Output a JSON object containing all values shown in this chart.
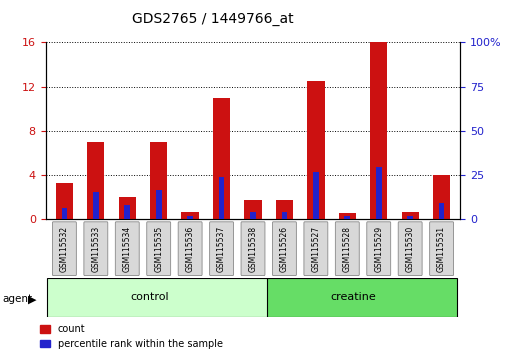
{
  "title": "GDS2765 / 1449766_at",
  "samples": [
    "GSM115532",
    "GSM115533",
    "GSM115534",
    "GSM115535",
    "GSM115536",
    "GSM115537",
    "GSM115538",
    "GSM115526",
    "GSM115527",
    "GSM115528",
    "GSM115529",
    "GSM115530",
    "GSM115531"
  ],
  "count_values": [
    3.3,
    7.0,
    2.0,
    7.0,
    0.7,
    11.0,
    1.8,
    1.8,
    12.5,
    0.6,
    16.0,
    0.7,
    4.0
  ],
  "percentile_values": [
    6.25,
    15.6,
    8.1,
    16.9,
    1.9,
    23.75,
    4.4,
    4.4,
    26.9,
    1.9,
    29.4,
    1.9,
    9.4
  ],
  "groups": [
    {
      "label": "control",
      "start": 0,
      "end": 7,
      "color": "#ccffcc"
    },
    {
      "label": "creatine",
      "start": 7,
      "end": 13,
      "color": "#66dd66"
    }
  ],
  "ylim_left": [
    0,
    16
  ],
  "ylim_right": [
    0,
    100
  ],
  "yticks_left": [
    0,
    4,
    8,
    12,
    16
  ],
  "yticks_right": [
    0,
    25,
    50,
    75,
    100
  ],
  "count_color": "#cc1111",
  "percentile_color": "#2222cc",
  "plot_bg": "#ffffff",
  "bar_width": 0.55,
  "blue_bar_width": 0.18
}
